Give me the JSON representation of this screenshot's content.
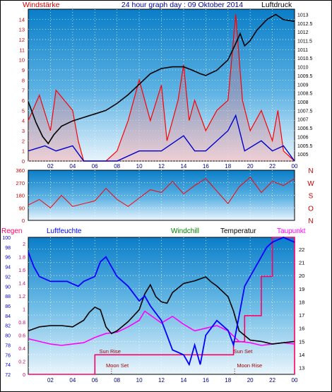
{
  "header": {
    "left": "Windstärke",
    "center": "24 hour graph day : 09 Oktober 2014",
    "right": "Luftdruck"
  },
  "colors": {
    "wind_speed": "#ff0000",
    "wind_gust": "#0000cc",
    "pressure": "#000000",
    "humidity": "#0000ff",
    "temperature": "#000000",
    "dewpoint": "#ff00ff",
    "rain": "#ff0066",
    "windchill": "#008000"
  },
  "chart_data": [
    {
      "type": "line",
      "panel": "wind-pressure",
      "x_ticks": [
        "02",
        "04",
        "06",
        "08",
        "10",
        "12",
        "14",
        "16",
        "18",
        "20",
        "22",
        "00"
      ],
      "y_left_ticks": [
        "0",
        "1",
        "2",
        "3",
        "4",
        "5",
        "6",
        "7",
        "8",
        "9",
        "10",
        "11",
        "12",
        "13",
        "14"
      ],
      "y_right_ticks": [
        "1005",
        "1005.5",
        "1006",
        "1006.5",
        "1007",
        "1007.5",
        "1008",
        "1008.5",
        "1009",
        "1009.5",
        "1010",
        "1010.5",
        "1011",
        "1011.5",
        "1012",
        "1012.5",
        "1013"
      ],
      "ylim_left": [
        0,
        15
      ],
      "ylim_right": [
        1004.6,
        1013.3
      ],
      "series": [
        {
          "values": [
            [
              0,
              1008.0
            ],
            [
              0.7,
              1006.8
            ],
            [
              1.3,
              1006.0
            ],
            [
              1.8,
              1005.6
            ],
            [
              2.3,
              1006.1
            ],
            [
              3.0,
              1006.6
            ],
            [
              4.0,
              1006.9
            ],
            [
              5.0,
              1007.1
            ],
            [
              6.0,
              1007.3
            ],
            [
              7.0,
              1007.5
            ],
            [
              8.0,
              1007.9
            ],
            [
              9.0,
              1008.4
            ],
            [
              10.0,
              1009.0
            ],
            [
              11.0,
              1009.6
            ],
            [
              12.0,
              1009.9
            ],
            [
              13.0,
              1010.0
            ],
            [
              14.0,
              1010.0
            ],
            [
              14.8,
              1009.8
            ],
            [
              15.5,
              1009.6
            ],
            [
              16.0,
              1009.5
            ],
            [
              17.0,
              1009.8
            ],
            [
              18.0,
              1010.4
            ],
            [
              18.6,
              1011.2
            ],
            [
              19.1,
              1011.9
            ],
            [
              19.5,
              1011.2
            ],
            [
              20.0,
              1011.5
            ],
            [
              20.6,
              1012.1
            ],
            [
              21.5,
              1012.7
            ],
            [
              22.3,
              1013.0
            ],
            [
              23.0,
              1012.7
            ],
            [
              24.0,
              1012.6
            ]
          ]
        },
        {
          "values": [
            [
              0,
              4
            ],
            [
              1.0,
              6.5
            ],
            [
              2.0,
              3
            ],
            [
              2.5,
              7
            ],
            [
              4.0,
              5
            ],
            [
              4.5,
              2
            ],
            [
              5.0,
              0
            ],
            [
              6.0,
              0
            ],
            [
              7.0,
              0
            ],
            [
              8.0,
              1
            ],
            [
              9.0,
              4
            ],
            [
              10.0,
              8
            ],
            [
              11.0,
              4
            ],
            [
              12.0,
              7.5
            ],
            [
              12.5,
              2
            ],
            [
              13.5,
              6
            ],
            [
              14.0,
              9.5
            ],
            [
              14.5,
              4
            ],
            [
              15.0,
              6
            ],
            [
              16.0,
              3
            ],
            [
              17.0,
              5
            ],
            [
              18.0,
              6
            ],
            [
              18.7,
              14.5
            ],
            [
              19.3,
              6
            ],
            [
              20.0,
              3
            ],
            [
              21.0,
              5
            ],
            [
              22.0,
              2
            ],
            [
              22.5,
              5
            ],
            [
              23.0,
              1
            ],
            [
              24.0,
              0
            ]
          ]
        },
        {
          "values": [
            [
              0,
              1
            ],
            [
              1.5,
              1.5
            ],
            [
              2.5,
              1
            ],
            [
              4.0,
              1.5
            ],
            [
              5.0,
              0
            ],
            [
              8.0,
              0
            ],
            [
              10.0,
              1
            ],
            [
              12.0,
              1
            ],
            [
              14.0,
              2.5
            ],
            [
              15.0,
              1
            ],
            [
              16.0,
              1
            ],
            [
              18.0,
              3
            ],
            [
              18.7,
              4.5
            ],
            [
              19.5,
              1
            ],
            [
              21.0,
              2
            ],
            [
              22.0,
              1
            ],
            [
              23.0,
              1.5
            ],
            [
              24.0,
              0
            ]
          ]
        }
      ]
    },
    {
      "type": "line",
      "panel": "wind-direction",
      "y_left_ticks": [
        "360",
        "270",
        "180",
        "90",
        "0"
      ],
      "y_right_ticks": [
        "N",
        "W",
        "S",
        "O",
        "N"
      ],
      "ylim": [
        0,
        360
      ],
      "series": [
        {
          "values": [
            [
              0,
              110
            ],
            [
              1,
              150
            ],
            [
              2,
              90
            ],
            [
              3,
              180
            ],
            [
              4,
              100
            ],
            [
              5,
              120
            ],
            [
              6,
              140
            ],
            [
              7,
              230
            ],
            [
              8,
              150
            ],
            [
              9,
              100
            ],
            [
              10,
              160
            ],
            [
              11,
              220
            ],
            [
              12,
              200
            ],
            [
              13,
              280
            ],
            [
              14,
              190
            ],
            [
              15,
              250
            ],
            [
              16,
              300
            ],
            [
              17,
              210
            ],
            [
              18,
              120
            ],
            [
              19,
              240
            ],
            [
              20,
              310
            ],
            [
              21,
              200
            ],
            [
              22,
              280
            ],
            [
              23,
              250
            ],
            [
              24,
              300
            ]
          ]
        }
      ]
    },
    {
      "type": "line",
      "panel": "humidity-temperature",
      "legend": [
        "Regen",
        "Luftfeuchte",
        "Windchill",
        "Temperatur",
        "Taupunkt"
      ],
      "x_ticks": [
        "02",
        "04",
        "06",
        "08",
        "10",
        "12",
        "14",
        "16",
        "18",
        "20",
        "22",
        "00"
      ],
      "y_humidity_ticks": [
        "72",
        "74",
        "76",
        "78",
        "80",
        "82",
        "84",
        "86",
        "88",
        "90",
        "92",
        "94",
        "96",
        "98",
        "100"
      ],
      "y_rain_ticks": [
        "0",
        "0.2",
        "0.4",
        "0.6",
        "0.8",
        "1",
        "1.2",
        "1.4",
        "1.6",
        "1.8",
        "2"
      ],
      "y_temp_ticks": [
        "13",
        "14",
        "15",
        "16",
        "17",
        "18",
        "19",
        "20",
        "21",
        "22"
      ],
      "annotations": [
        "Sun Rise",
        "Sun Set",
        "Moon Set",
        "Moon Rise"
      ],
      "ylim_temp": [
        12.5,
        22.9
      ],
      "ylim_humidity": [
        72,
        100
      ],
      "series": [
        {
          "values": [
            [
              0,
              97
            ],
            [
              0.5,
              94
            ],
            [
              1.0,
              92
            ],
            [
              2.0,
              91
            ],
            [
              3.5,
              91
            ],
            [
              4.5,
              90
            ],
            [
              5.0,
              91
            ],
            [
              6.0,
              92
            ],
            [
              6.5,
              95
            ],
            [
              7.0,
              96
            ],
            [
              7.5,
              94
            ],
            [
              8.0,
              92
            ],
            [
              9.0,
              90
            ],
            [
              10.0,
              87
            ],
            [
              10.5,
              88
            ],
            [
              11.0,
              86
            ],
            [
              12.0,
              83
            ],
            [
              12.5,
              80
            ],
            [
              13.0,
              77
            ],
            [
              14.0,
              76
            ],
            [
              14.5,
              74
            ],
            [
              15.0,
              78
            ],
            [
              15.5,
              74
            ],
            [
              16.0,
              80
            ],
            [
              17.0,
              83
            ],
            [
              18.0,
              81
            ],
            [
              18.5,
              78
            ],
            [
              19.0,
              84
            ],
            [
              19.5,
              90
            ],
            [
              20.0,
              92
            ],
            [
              21.0,
              96
            ],
            [
              21.5,
              98
            ],
            [
              22.0,
              99
            ],
            [
              23.0,
              100
            ],
            [
              24.0,
              99
            ]
          ]
        },
        {
          "values": [
            [
              0,
              15.8
            ],
            [
              1.0,
              16.1
            ],
            [
              2.0,
              16.2
            ],
            [
              3.0,
              16.2
            ],
            [
              4.0,
              16.1
            ],
            [
              5.0,
              16.6
            ],
            [
              5.5,
              17.2
            ],
            [
              6.0,
              17.6
            ],
            [
              6.5,
              17.4
            ],
            [
              7.0,
              16.1
            ],
            [
              7.5,
              15.6
            ],
            [
              8.0,
              15.8
            ],
            [
              9.0,
              16.5
            ],
            [
              10.0,
              17.4
            ],
            [
              10.5,
              18.6
            ],
            [
              11.0,
              19.3
            ],
            [
              11.5,
              18.4
            ],
            [
              12.0,
              18.0
            ],
            [
              12.5,
              17.9
            ],
            [
              13.0,
              18.7
            ],
            [
              14.0,
              19.4
            ],
            [
              15.0,
              19.6
            ],
            [
              16.0,
              19.9
            ],
            [
              16.5,
              19.5
            ],
            [
              17.0,
              19.2
            ],
            [
              18.0,
              18.4
            ],
            [
              18.5,
              17.3
            ],
            [
              19.0,
              15.8
            ],
            [
              20.0,
              15.1
            ],
            [
              21.0,
              15.0
            ],
            [
              22.0,
              14.8
            ],
            [
              23.0,
              14.9
            ],
            [
              24.0,
              15.0
            ]
          ]
        },
        {
          "values": [
            [
              0,
              15.2
            ],
            [
              1.0,
              15.0
            ],
            [
              2.0,
              14.8
            ],
            [
              3.0,
              14.7
            ],
            [
              4.0,
              14.8
            ],
            [
              5.0,
              14.9
            ],
            [
              6.0,
              15.3
            ],
            [
              7.0,
              15.6
            ],
            [
              8.0,
              15.7
            ],
            [
              9.0,
              16.1
            ],
            [
              10.0,
              16.6
            ],
            [
              10.5,
              17.3
            ],
            [
              11.0,
              17.0
            ],
            [
              12.0,
              16.4
            ],
            [
              13.0,
              16.9
            ],
            [
              14.0,
              16.3
            ],
            [
              15.0,
              15.8
            ],
            [
              16.0,
              16.0
            ],
            [
              17.0,
              16.2
            ],
            [
              18.0,
              15.8
            ],
            [
              19.0,
              15.0
            ],
            [
              20.0,
              14.9
            ],
            [
              21.0,
              14.7
            ],
            [
              22.0,
              14.8
            ],
            [
              23.0,
              14.9
            ],
            [
              24.0,
              14.8
            ]
          ]
        },
        {
          "values": [
            [
              0,
              0
            ],
            [
              6.0,
              0
            ],
            [
              6.0,
              0.3
            ],
            [
              18.5,
              0.3
            ],
            [
              18.5,
              0.5
            ],
            [
              19.5,
              0.5
            ],
            [
              19.5,
              0.9
            ],
            [
              21.0,
              0.9
            ],
            [
              21.0,
              1.5
            ],
            [
              22.0,
              1.5
            ],
            [
              22.0,
              2.1
            ],
            [
              24.0,
              2.1
            ],
            [
              24.0,
              0
            ]
          ]
        }
      ]
    }
  ]
}
